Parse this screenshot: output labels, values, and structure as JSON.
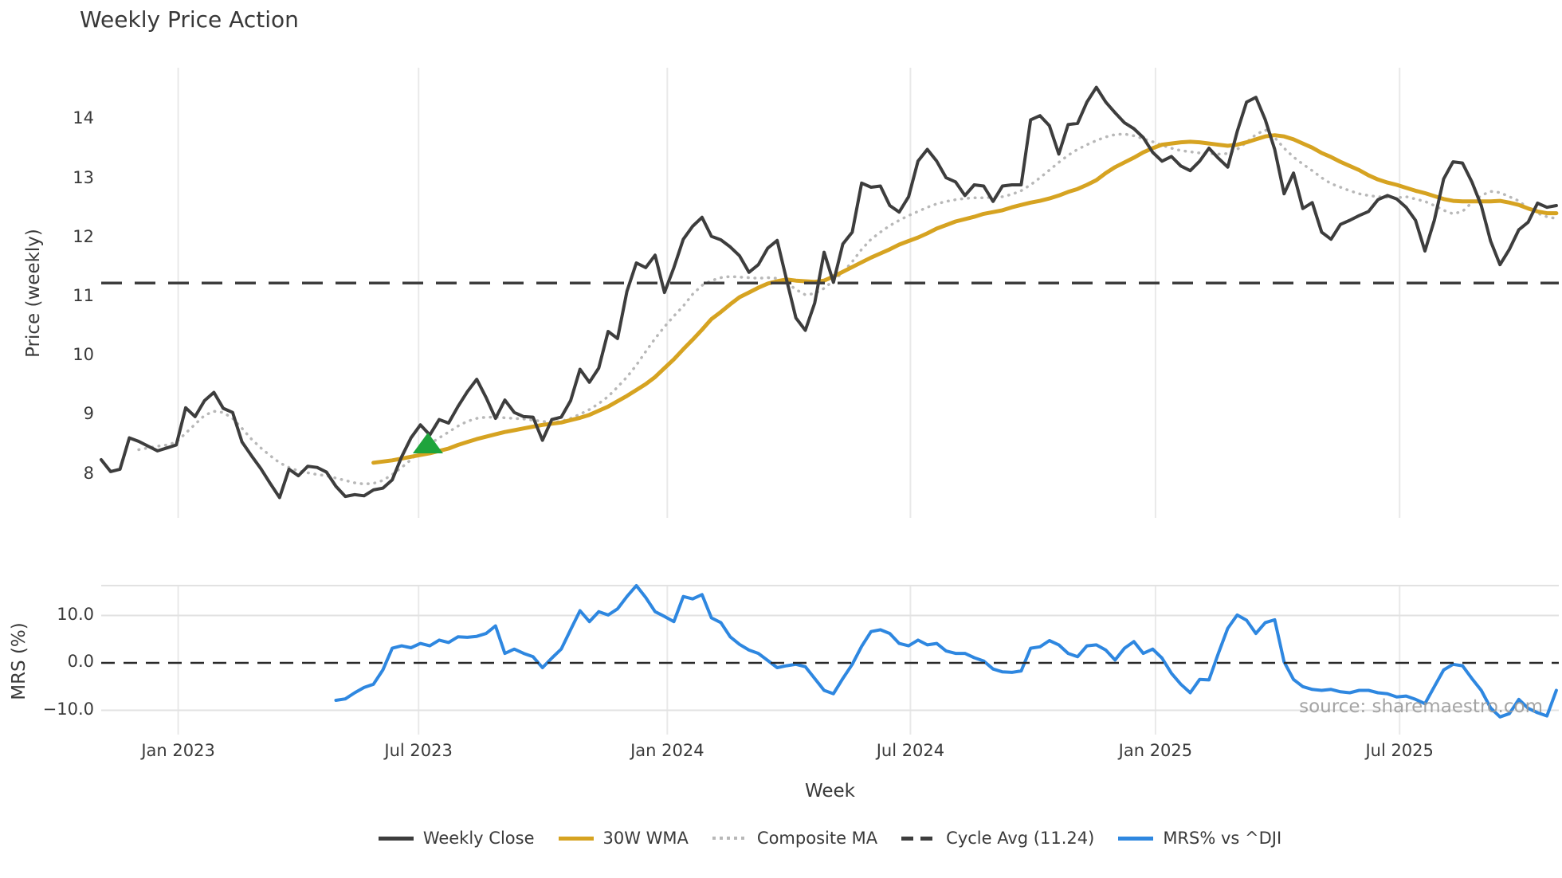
{
  "title": "Weekly Price Action",
  "source_text": "source: sharemaestro.com",
  "colors": {
    "weekly_close": "#3d3d3d",
    "wma": "#d6a321",
    "composite": "#b8b8b8",
    "cycle_avg": "#3d3d3d",
    "mrs": "#2e87e0",
    "signal_marker": "#1ea43c",
    "grid": "#e9e9e9",
    "panel_line": "#e2e2e2",
    "text": "#3a3a3a",
    "source": "#9b9b9b"
  },
  "legend": {
    "items": [
      {
        "label": "Weekly Close",
        "style": "solid",
        "color": "#3d3d3d"
      },
      {
        "label": "30W WMA",
        "style": "solid",
        "color": "#d6a321"
      },
      {
        "label": "Composite MA",
        "style": "dotted",
        "color": "#b8b8b8"
      },
      {
        "label": "Cycle Avg (11.24)",
        "style": "dashed",
        "color": "#3d3d3d"
      },
      {
        "label": "MRS% vs ^DJI",
        "style": "solid",
        "color": "#2e87e0"
      }
    ]
  },
  "chart_data": {
    "type": "line",
    "xlabel": "Week",
    "x_unit": "weeks from first data point (late 2022), weekly sampling",
    "x_ticks": [
      {
        "label": "Jan 2023",
        "week": 8.2
      },
      {
        "label": "Jul 2023",
        "week": 33.8
      },
      {
        "label": "Jan 2024",
        "week": 60.3
      },
      {
        "label": "Jul 2024",
        "week": 86.2
      },
      {
        "label": "Jan 2025",
        "week": 112.3
      },
      {
        "label": "Jul 2025",
        "week": 138.3
      }
    ],
    "panels": [
      {
        "id": "price",
        "ylabel": "Price (weekly)",
        "yticks": [
          {
            "label": "14",
            "value": 14
          },
          {
            "label": "13",
            "value": 13
          },
          {
            "label": "12",
            "value": 12
          },
          {
            "label": "11",
            "value": 11
          },
          {
            "label": "10",
            "value": 10
          },
          {
            "label": "9",
            "value": 9
          },
          {
            "label": "8",
            "value": 8
          }
        ],
        "ylim": [
          7.3,
          14.9
        ],
        "grid": "vertical-only",
        "hline": {
          "label": "Cycle Avg (11.24)",
          "value": 11.24,
          "style": "dashed",
          "color": "#3d3d3d"
        },
        "marker": {
          "shape": "triangle-up",
          "meaning": "signal",
          "color": "#1ea43c",
          "week": 34.8,
          "value": 8.52
        },
        "series": [
          {
            "name": "Composite MA",
            "style": "dotted",
            "color": "#b8b8b8",
            "width": 3.5,
            "start_week": 4,
            "values": [
              8.42,
              8.45,
              8.48,
              8.5,
              8.55,
              8.7,
              8.85,
              9.0,
              9.07,
              9.05,
              8.95,
              8.78,
              8.6,
              8.45,
              8.32,
              8.2,
              8.12,
              8.06,
              8.03,
              8.0,
              7.98,
              7.94,
              7.9,
              7.86,
              7.84,
              7.85,
              7.9,
              8.0,
              8.12,
              8.25,
              8.4,
              8.52,
              8.62,
              8.72,
              8.82,
              8.9,
              8.95,
              8.97,
              8.97,
              8.96,
              8.95,
              8.94,
              8.92,
              8.9,
              8.88,
              8.9,
              8.95,
              9.02,
              9.1,
              9.2,
              9.32,
              9.48,
              9.65,
              9.85,
              10.08,
              10.3,
              10.5,
              10.68,
              10.85,
              11.05,
              11.2,
              11.28,
              11.33,
              11.35,
              11.34,
              11.33,
              11.32,
              11.33,
              11.32,
              11.25,
              11.13,
              11.04,
              11.06,
              11.15,
              11.28,
              11.42,
              11.6,
              11.81,
              11.98,
              12.1,
              12.21,
              12.3,
              12.38,
              12.45,
              12.52,
              12.58,
              12.62,
              12.65,
              12.67,
              12.68,
              12.68,
              12.69,
              12.7,
              12.74,
              12.8,
              12.9,
              13.02,
              13.15,
              13.28,
              13.4,
              13.5,
              13.58,
              13.65,
              13.71,
              13.75,
              13.76,
              13.73,
              13.68,
              13.63,
              13.57,
              13.52,
              13.48,
              13.46,
              13.44,
              13.43,
              13.42,
              13.43,
              13.5,
              13.62,
              13.75,
              13.83,
              13.7,
              13.52,
              13.37,
              13.25,
              13.14,
              13.02,
              12.92,
              12.86,
              12.8,
              12.75,
              12.72,
              12.7,
              12.69,
              12.68,
              12.7,
              12.66,
              12.62,
              12.55,
              12.47,
              12.41,
              12.45,
              12.6,
              12.72,
              12.79,
              12.77,
              12.7,
              12.63,
              12.5,
              12.42,
              12.36,
              12.33
            ]
          },
          {
            "name": "30W WMA",
            "style": "solid",
            "color": "#d6a321",
            "width": 5,
            "start_week": 29,
            "values": [
              8.2,
              8.22,
              8.24,
              8.27,
              8.3,
              8.33,
              8.36,
              8.4,
              8.44,
              8.5,
              8.55,
              8.6,
              8.64,
              8.68,
              8.72,
              8.75,
              8.78,
              8.81,
              8.84,
              8.86,
              8.88,
              8.92,
              8.96,
              9.01,
              9.08,
              9.15,
              9.24,
              9.33,
              9.43,
              9.53,
              9.65,
              9.8,
              9.95,
              10.12,
              10.28,
              10.45,
              10.63,
              10.75,
              10.88,
              11.0,
              11.08,
              11.16,
              11.23,
              11.27,
              11.3,
              11.28,
              11.27,
              11.26,
              11.28,
              11.35,
              11.43,
              11.51,
              11.59,
              11.67,
              11.74,
              11.81,
              11.89,
              11.95,
              12.01,
              12.08,
              12.16,
              12.22,
              12.28,
              12.32,
              12.36,
              12.41,
              12.44,
              12.47,
              12.52,
              12.56,
              12.6,
              12.63,
              12.67,
              12.72,
              12.78,
              12.83,
              12.9,
              12.98,
              13.1,
              13.2,
              13.28,
              13.36,
              13.45,
              13.52,
              13.58,
              13.6,
              13.62,
              13.63,
              13.62,
              13.6,
              13.58,
              13.56,
              13.58,
              13.62,
              13.67,
              13.72,
              13.74,
              13.72,
              13.67,
              13.6,
              13.53,
              13.44,
              13.37,
              13.29,
              13.22,
              13.15,
              13.06,
              12.99,
              12.94,
              12.9,
              12.85,
              12.8,
              12.76,
              12.71,
              12.66,
              12.63,
              12.62,
              12.62,
              12.62,
              12.62,
              12.63,
              12.6,
              12.56,
              12.5,
              12.45,
              12.42,
              12.42
            ]
          },
          {
            "name": "Weekly Close",
            "style": "solid",
            "color": "#3d3d3d",
            "width": 4,
            "start_week": 0,
            "values": [
              8.25,
              8.05,
              8.09,
              8.62,
              8.56,
              8.48,
              8.4,
              8.45,
              8.5,
              9.13,
              8.98,
              9.25,
              9.39,
              9.12,
              9.05,
              8.55,
              8.32,
              8.1,
              7.85,
              7.61,
              8.09,
              7.98,
              8.14,
              8.12,
              8.04,
              7.8,
              7.63,
              7.66,
              7.64,
              7.74,
              7.77,
              7.91,
              8.3,
              8.62,
              8.84,
              8.67,
              8.93,
              8.87,
              9.15,
              9.4,
              9.61,
              9.3,
              8.95,
              9.26,
              9.05,
              8.98,
              8.97,
              8.58,
              8.93,
              8.97,
              9.25,
              9.78,
              9.56,
              9.8,
              10.42,
              10.3,
              11.1,
              11.58,
              11.5,
              11.71,
              11.08,
              11.5,
              11.98,
              12.2,
              12.35,
              12.03,
              11.97,
              11.85,
              11.7,
              11.42,
              11.55,
              11.83,
              11.96,
              11.3,
              10.65,
              10.44,
              10.9,
              11.76,
              11.25,
              11.9,
              12.1,
              12.93,
              12.86,
              12.88,
              12.55,
              12.44,
              12.7,
              13.3,
              13.5,
              13.3,
              13.02,
              12.95,
              12.72,
              12.9,
              12.88,
              12.62,
              12.88,
              12.9,
              12.9,
              14.0,
              14.07,
              13.9,
              13.42,
              13.92,
              13.94,
              14.3,
              14.55,
              14.3,
              14.12,
              13.95,
              13.85,
              13.7,
              13.45,
              13.3,
              13.38,
              13.22,
              13.14,
              13.3,
              13.52,
              13.35,
              13.2,
              13.8,
              14.3,
              14.38,
              14.0,
              13.5,
              12.75,
              13.1,
              12.5,
              12.6,
              12.1,
              11.98,
              12.23,
              12.3,
              12.38,
              12.45,
              12.65,
              12.72,
              12.66,
              12.52,
              12.3,
              11.78,
              12.3,
              13.0,
              13.29,
              13.27,
              12.95,
              12.55,
              11.95,
              11.55,
              11.81,
              12.14,
              12.27,
              12.59,
              12.52,
              12.55
            ]
          }
        ]
      },
      {
        "id": "mrs",
        "ylabel": "MRS (%)",
        "yticks": [
          {
            "label": "10.0",
            "value": 10
          },
          {
            "label": "0.0",
            "value": 0
          },
          {
            "label": "−10.0",
            "value": -10
          }
        ],
        "ylim": [
          -15.1,
          16.3
        ],
        "hline": {
          "label": "zero line",
          "value": 0,
          "style": "dashed",
          "color": "#2a2a2a"
        },
        "series": [
          {
            "name": "MRS% vs ^DJI",
            "style": "solid",
            "color": "#2e87e0",
            "width": 4,
            "start_week": 25,
            "values": [
              -7.9,
              -7.6,
              -6.3,
              -5.2,
              -4.5,
              -1.5,
              3.1,
              3.6,
              3.2,
              4.1,
              3.6,
              4.8,
              4.3,
              5.5,
              5.4,
              5.6,
              6.2,
              7.8,
              2.0,
              2.9,
              2.0,
              1.3,
              -1.0,
              1.0,
              2.9,
              7.0,
              11.0,
              8.7,
              10.8,
              10.1,
              11.4,
              14.0,
              16.3,
              13.8,
              10.8,
              9.8,
              8.7,
              14.0,
              13.5,
              14.4,
              9.5,
              8.5,
              5.5,
              3.9,
              2.7,
              2.0,
              0.5,
              -1.0,
              -0.6,
              -0.3,
              -0.8,
              -3.3,
              -5.8,
              -6.5,
              -3.3,
              -0.3,
              3.5,
              6.6,
              7.0,
              6.2,
              4.1,
              3.6,
              4.8,
              3.8,
              4.1,
              2.5,
              2.0,
              2.0,
              1.1,
              0.4,
              -1.3,
              -1.9,
              -2.0,
              -1.7,
              3.1,
              3.4,
              4.7,
              3.8,
              2.0,
              1.3,
              3.6,
              3.8,
              2.7,
              0.6,
              3.1,
              4.5,
              2.0,
              2.9,
              1.0,
              -2.2,
              -4.5,
              -6.3,
              -3.5,
              -3.6,
              2.0,
              7.3,
              10.1,
              9.0,
              6.2,
              8.5,
              9.1,
              0.2,
              -3.5,
              -5.0,
              -5.6,
              -5.8,
              -5.6,
              -6.1,
              -6.3,
              -5.8,
              -5.8,
              -6.3,
              -6.5,
              -7.2,
              -7.0,
              -7.7,
              -8.6,
              -5.0,
              -1.5,
              -0.3,
              -0.6,
              -3.3,
              -5.8,
              -9.5,
              -11.4,
              -10.7,
              -7.7,
              -9.6,
              -10.5,
              -11.2,
              -5.8
            ]
          }
        ]
      }
    ]
  }
}
